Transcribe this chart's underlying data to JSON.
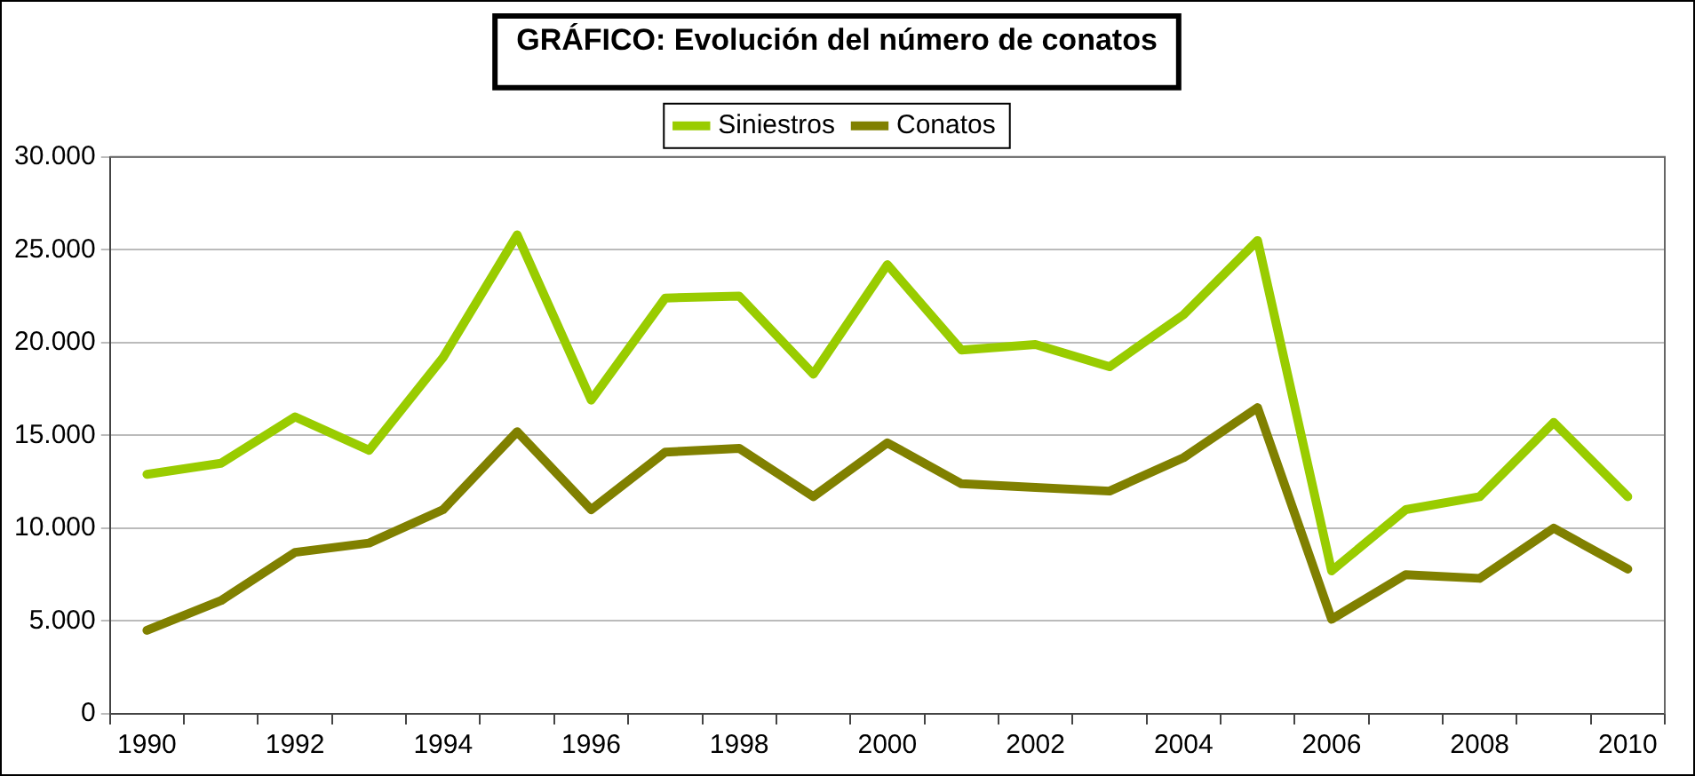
{
  "chart_data": {
    "type": "line",
    "title": "GRÁFICO: Evolución del número de conatos",
    "categories": [
      "1990",
      null,
      "1992",
      null,
      "1994",
      null,
      "1996",
      null,
      "1998",
      null,
      "2000",
      null,
      "2002",
      null,
      "2004",
      null,
      "2006",
      null,
      "2008",
      null,
      "2010"
    ],
    "series": [
      {
        "name": "Siniestros",
        "color": "#99cc00",
        "values": [
          12900,
          13500,
          16000,
          14200,
          19200,
          25800,
          16900,
          22400,
          22500,
          18300,
          24200,
          19600,
          19900,
          18700,
          21500,
          25500,
          7700,
          11000,
          11700,
          15700,
          11700
        ]
      },
      {
        "name": "Conatos",
        "color": "#808000",
        "values": [
          4500,
          6100,
          8700,
          9200,
          11000,
          15200,
          11000,
          14100,
          14300,
          11700,
          14600,
          12400,
          12200,
          12000,
          13800,
          16500,
          5100,
          7500,
          7300,
          10000,
          7800
        ]
      }
    ],
    "ylim": [
      0,
      30000
    ],
    "yticks": [
      {
        "value": 0,
        "label": "0"
      },
      {
        "value": 5000,
        "label": "5.000"
      },
      {
        "value": 10000,
        "label": "10.000"
      },
      {
        "value": 15000,
        "label": "15.000"
      },
      {
        "value": 20000,
        "label": "20.000"
      },
      {
        "value": 25000,
        "label": "25.000"
      },
      {
        "value": 30000,
        "label": "30.000"
      }
    ],
    "grid": "y",
    "legend": "top",
    "marker": "none",
    "line_style": "solid"
  }
}
